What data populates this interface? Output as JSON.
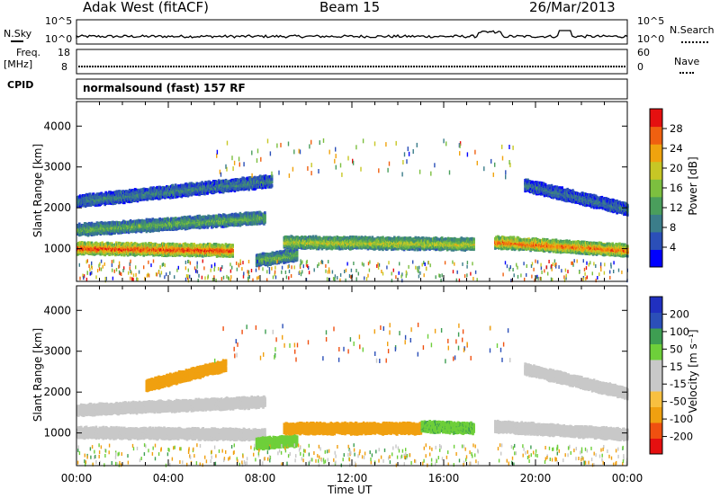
{
  "header": {
    "station": "Adak West (fitACF)",
    "beam": "Beam 15",
    "date": "26/Mar/2013"
  },
  "top_panels": {
    "nsky_label": "N.Sky",
    "nsky_ticks": [
      "10^5",
      "10^0"
    ],
    "nsearch_label": "N.Search",
    "nsearch_ticks": [
      "10^5",
      "10^0"
    ],
    "freq_label": "Freq.",
    "freq_unit": "[MHz]",
    "freq_ticks": [
      "18",
      "8"
    ],
    "nave_label": "Nave",
    "nave_ticks": [
      "60",
      "0"
    ],
    "cpid_label": "CPID",
    "cpid_text": "normalsound (fast) 157 RF"
  },
  "chart_data": [
    {
      "type": "heatmap",
      "panel": "power",
      "ylabel": "Slant Range [km]",
      "ylim": [
        200,
        4600
      ],
      "yticks": [
        "4000",
        "3000",
        "2000",
        "1000"
      ],
      "xlim": [
        "00:00",
        "24:00"
      ],
      "colorbar_label": "Power [dB]",
      "colorbar_ticks": [
        "28",
        "24",
        "20",
        "16",
        "12",
        "8",
        "4"
      ],
      "colorbar_colors": [
        "#0000ff",
        "#2b4fb8",
        "#3b7d8a",
        "#4a9e5c",
        "#7cbf3f",
        "#c7c725",
        "#f0a30e",
        "#f06010",
        "#e51010"
      ],
      "bands": [
        {
          "t_start": 0.0,
          "t_end": 6.8,
          "range_start": 1050,
          "range_end": 1000,
          "value": 26
        },
        {
          "t_start": 0.0,
          "t_end": 8.2,
          "range_start": 1500,
          "range_end": 1800,
          "value": 14
        },
        {
          "t_start": 0.0,
          "t_end": 8.5,
          "range_start": 2200,
          "range_end": 2700,
          "value": 10
        },
        {
          "t_start": 7.8,
          "t_end": 9.6,
          "range_start": 750,
          "range_end": 900,
          "value": 14
        },
        {
          "t_start": 9.0,
          "t_end": 17.3,
          "range_start": 1200,
          "range_end": 1150,
          "value": 18
        },
        {
          "t_start": 18.2,
          "t_end": 24.0,
          "range_start": 1200,
          "range_end": 1000,
          "value": 24
        },
        {
          "t_start": 19.5,
          "t_end": 24.0,
          "range_start": 2600,
          "range_end": 2000,
          "value": 9
        }
      ]
    },
    {
      "type": "heatmap",
      "panel": "velocity",
      "ylabel": "Slant Range [km]",
      "ylim": [
        200,
        4600
      ],
      "yticks": [
        "4000",
        "3000",
        "2000",
        "1000"
      ],
      "xlim": [
        "00:00",
        "24:00"
      ],
      "xticks": [
        "00:00",
        "04:00",
        "08:00",
        "12:00",
        "16:00",
        "20:00",
        "00:00"
      ],
      "xlabel": "Time UT",
      "colorbar_label": "Velocity [m s⁻¹]",
      "colorbar_ticks": [
        "200",
        "100",
        "50",
        "15",
        "-15",
        "-50",
        "-100",
        "-200"
      ],
      "colorbar_colors": [
        "#e51010",
        "#f05010",
        "#f0a010",
        "#f8c040",
        "#c8c8c8",
        "#c8c8c8",
        "#6ecf3a",
        "#3e9e52",
        "#2b4fb8",
        "#2030c0"
      ],
      "bands": [
        {
          "t_start": 0.0,
          "t_end": 8.2,
          "range_start": 1050,
          "range_end": 1000,
          "value": 0
        },
        {
          "t_start": 0.0,
          "t_end": 8.2,
          "range_start": 1600,
          "range_end": 1800,
          "value": 0
        },
        {
          "t_start": 3.0,
          "t_end": 6.5,
          "range_start": 2200,
          "range_end": 2700,
          "value": -60
        },
        {
          "t_start": 7.8,
          "t_end": 9.6,
          "range_start": 780,
          "range_end": 850,
          "value": 30
        },
        {
          "t_start": 9.0,
          "t_end": 15.0,
          "range_start": 1150,
          "range_end": 1150,
          "value": -60
        },
        {
          "t_start": 15.0,
          "t_end": 17.3,
          "range_start": 1200,
          "range_end": 1150,
          "value": 40
        },
        {
          "t_start": 18.2,
          "t_end": 24.0,
          "range_start": 1200,
          "range_end": 1000,
          "value": 0
        },
        {
          "t_start": 19.5,
          "t_end": 24.0,
          "range_start": 2600,
          "range_end": 2000,
          "value": 0
        }
      ]
    }
  ]
}
